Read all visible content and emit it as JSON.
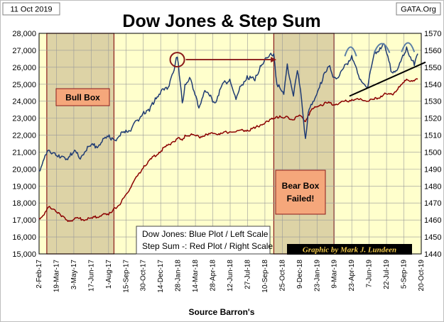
{
  "date_label": "11 Oct 2019",
  "site_label": "GATA.Org",
  "source_label": "Source Barron's",
  "credit_label": "Graphic by Mark J. Lundeen",
  "colors": {
    "plot_bg": "#ffffcc",
    "box_fill": "#ddd3a6",
    "box_border": "#8b1a1a",
    "dow_line": "#1f3b73",
    "step_line": "#8b0000",
    "label_box": "#f5a77b"
  },
  "chart_data": {
    "type": "line",
    "title": "Dow Jones & Step Sum",
    "x_ticks": [
      "2-Feb-17",
      "19-Mar-17",
      "3-May-17",
      "17-Jun-17",
      "1-Aug-17",
      "15-Sep-17",
      "30-Oct-17",
      "14-Dec-17",
      "28-Jan-18",
      "14-Mar-18",
      "28-Apr-18",
      "12-Jun-18",
      "27-Jul-18",
      "10-Sep-18",
      "25-Oct-18",
      "9-Dec-18",
      "23-Jan-19",
      "9-Mar-19",
      "23-Apr-19",
      "7-Jun-19",
      "22-Jul-19",
      "5-Sep-19",
      "20-Oct-19"
    ],
    "y_left": {
      "min": 15000,
      "max": 28000,
      "step": 1000,
      "labels": [
        "15,000",
        "16,000",
        "17,000",
        "18,000",
        "19,000",
        "20,000",
        "21,000",
        "22,000",
        "23,000",
        "24,000",
        "25,000",
        "26,000",
        "27,000",
        "28,000"
      ]
    },
    "y_right": {
      "min": 1440,
      "max": 1570,
      "step": 10,
      "labels": [
        "1440",
        "1450",
        "1460",
        "1470",
        "1480",
        "1490",
        "1500",
        "1510",
        "1520",
        "1530",
        "1540",
        "1550",
        "1560",
        "1570"
      ]
    },
    "grid": true,
    "shaded_boxes": [
      {
        "label": "Bull Box",
        "start": "2017-02-22",
        "end": "2017-08-15"
      },
      {
        "label": "Bear Box Failed!",
        "start": "2018-10-03",
        "end": "2019-03-08"
      }
    ],
    "series": [
      {
        "name": "Dow Jones",
        "axis": "left",
        "points": [
          [
            "2017-02-02",
            19900
          ],
          [
            "2017-02-15",
            20600
          ],
          [
            "2017-03-01",
            21100
          ],
          [
            "2017-03-15",
            20950
          ],
          [
            "2017-03-28",
            20650
          ],
          [
            "2017-04-12",
            20550
          ],
          [
            "2017-04-25",
            20950
          ],
          [
            "2017-05-10",
            20950
          ],
          [
            "2017-05-17",
            20650
          ],
          [
            "2017-05-31",
            21000
          ],
          [
            "2017-06-15",
            21350
          ],
          [
            "2017-06-30",
            21350
          ],
          [
            "2017-07-15",
            21600
          ],
          [
            "2017-07-31",
            21900
          ],
          [
            "2017-08-10",
            21850
          ],
          [
            "2017-08-18",
            21700
          ],
          [
            "2017-08-31",
            21950
          ],
          [
            "2017-09-15",
            22300
          ],
          [
            "2017-09-30",
            22400
          ],
          [
            "2017-10-15",
            22900
          ],
          [
            "2017-10-31",
            23400
          ],
          [
            "2017-11-15",
            23400
          ],
          [
            "2017-11-30",
            24200
          ],
          [
            "2017-12-15",
            24600
          ],
          [
            "2017-12-31",
            24700
          ],
          [
            "2018-01-10",
            25400
          ],
          [
            "2018-01-26",
            26600
          ],
          [
            "2018-02-08",
            23900
          ],
          [
            "2018-02-15",
            25000
          ],
          [
            "2018-02-27",
            25400
          ],
          [
            "2018-03-08",
            24700
          ],
          [
            "2018-03-23",
            23600
          ],
          [
            "2018-04-05",
            24500
          ],
          [
            "2018-04-20",
            24300
          ],
          [
            "2018-05-03",
            23900
          ],
          [
            "2018-05-21",
            24900
          ],
          [
            "2018-06-11",
            25300
          ],
          [
            "2018-06-27",
            24100
          ],
          [
            "2018-07-10",
            24900
          ],
          [
            "2018-07-26",
            25500
          ],
          [
            "2018-08-15",
            25200
          ],
          [
            "2018-08-29",
            26100
          ],
          [
            "2018-09-20",
            26600
          ],
          [
            "2018-10-03",
            26800
          ],
          [
            "2018-10-11",
            25000
          ],
          [
            "2018-10-29",
            24400
          ],
          [
            "2018-11-07",
            26200
          ],
          [
            "2018-11-23",
            24300
          ],
          [
            "2018-12-03",
            25800
          ],
          [
            "2018-12-14",
            24100
          ],
          [
            "2018-12-24",
            21800
          ],
          [
            "2018-12-31",
            23300
          ],
          [
            "2019-01-15",
            24000
          ],
          [
            "2019-02-01",
            25100
          ],
          [
            "2019-02-25",
            26100
          ],
          [
            "2019-03-08",
            25400
          ],
          [
            "2019-03-22",
            25500
          ],
          [
            "2019-04-10",
            26200
          ],
          [
            "2019-04-23",
            26700
          ],
          [
            "2019-05-13",
            25300
          ],
          [
            "2019-06-03",
            24800
          ],
          [
            "2019-06-20",
            26800
          ],
          [
            "2019-07-15",
            27400
          ],
          [
            "2019-08-05",
            25700
          ],
          [
            "2019-08-20",
            25900
          ],
          [
            "2019-09-05",
            26700
          ],
          [
            "2019-09-12",
            27200
          ],
          [
            "2019-10-02",
            26100
          ],
          [
            "2019-10-11",
            26800
          ]
        ]
      },
      {
        "name": "Step Sum",
        "axis": "right",
        "points": [
          [
            "2017-02-02",
            1461
          ],
          [
            "2017-02-15",
            1463
          ],
          [
            "2017-03-01",
            1468
          ],
          [
            "2017-03-15",
            1466
          ],
          [
            "2017-04-01",
            1462
          ],
          [
            "2017-04-15",
            1460
          ],
          [
            "2017-05-01",
            1460
          ],
          [
            "2017-05-15",
            1461
          ],
          [
            "2017-06-01",
            1460
          ],
          [
            "2017-06-20",
            1461
          ],
          [
            "2017-07-15",
            1463
          ],
          [
            "2017-08-01",
            1463
          ],
          [
            "2017-08-15",
            1467
          ],
          [
            "2017-08-31",
            1469
          ],
          [
            "2017-09-15",
            1475
          ],
          [
            "2017-10-01",
            1481
          ],
          [
            "2017-10-15",
            1486
          ],
          [
            "2017-11-01",
            1492
          ],
          [
            "2017-11-20",
            1496
          ],
          [
            "2017-12-10",
            1500
          ],
          [
            "2018-01-01",
            1504
          ],
          [
            "2018-01-26",
            1508
          ],
          [
            "2018-02-08",
            1507
          ],
          [
            "2018-02-15",
            1510
          ],
          [
            "2018-03-01",
            1510
          ],
          [
            "2018-03-23",
            1509
          ],
          [
            "2018-04-15",
            1510
          ],
          [
            "2018-05-01",
            1511
          ],
          [
            "2018-05-21",
            1511
          ],
          [
            "2018-06-11",
            1512
          ],
          [
            "2018-06-27",
            1512
          ],
          [
            "2018-07-10",
            1513
          ],
          [
            "2018-07-26",
            1513
          ],
          [
            "2018-08-15",
            1514
          ],
          [
            "2018-08-29",
            1516
          ],
          [
            "2018-09-20",
            1518
          ],
          [
            "2018-10-03",
            1520
          ],
          [
            "2018-10-11",
            1521
          ],
          [
            "2018-10-29",
            1520
          ],
          [
            "2018-11-07",
            1521
          ],
          [
            "2018-11-23",
            1519
          ],
          [
            "2018-12-03",
            1521
          ],
          [
            "2018-12-14",
            1521
          ],
          [
            "2018-12-24",
            1518
          ],
          [
            "2018-12-31",
            1522
          ],
          [
            "2019-01-15",
            1526
          ],
          [
            "2019-02-01",
            1528
          ],
          [
            "2019-02-25",
            1529
          ],
          [
            "2019-03-08",
            1528
          ],
          [
            "2019-03-22",
            1529
          ],
          [
            "2019-04-10",
            1530
          ],
          [
            "2019-04-23",
            1531
          ],
          [
            "2019-05-13",
            1531
          ],
          [
            "2019-06-03",
            1530
          ],
          [
            "2019-06-20",
            1531
          ],
          [
            "2019-07-15",
            1534
          ],
          [
            "2019-08-05",
            1534
          ],
          [
            "2019-08-20",
            1537
          ],
          [
            "2019-09-05",
            1541
          ],
          [
            "2019-09-12",
            1543
          ],
          [
            "2019-10-02",
            1542
          ],
          [
            "2019-10-11",
            1543
          ]
        ]
      }
    ],
    "annotations": {
      "bull_box": "Bull Box",
      "bear_box": "Bear Box Failed!",
      "legend_line1": "Dow Jones: Blue Plot / Left Scale",
      "legend_line2": "Step Sum -: Red Plot / Right Scale"
    }
  }
}
